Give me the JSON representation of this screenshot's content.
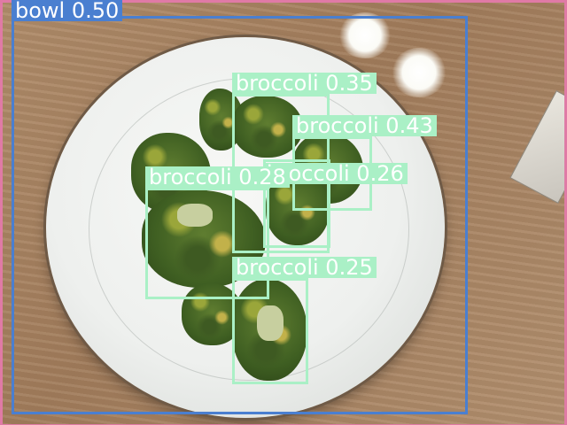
{
  "colors": {
    "broccoli_box": "#aaf0c6",
    "bowl_box": "#4a7fd0",
    "table_box": "#e07aa6",
    "label_text": "#ffffff"
  },
  "detections": [
    {
      "label": "bowl 0.50",
      "class": "bowl",
      "score": 0.5
    },
    {
      "label": "broccoli 0.35",
      "class": "broccoli",
      "score": 0.35
    },
    {
      "label": "broccoli 0.43",
      "class": "broccoli",
      "score": 0.43
    },
    {
      "label": "broccoli 0.26",
      "class": "broccoli",
      "score": 0.26
    },
    {
      "label": "broccoli 0.28",
      "class": "broccoli",
      "score": 0.28
    },
    {
      "label": "broccoli 0.25",
      "class": "broccoli",
      "score": 0.25
    },
    {
      "label": "",
      "class": "dining table",
      "score": null
    }
  ]
}
